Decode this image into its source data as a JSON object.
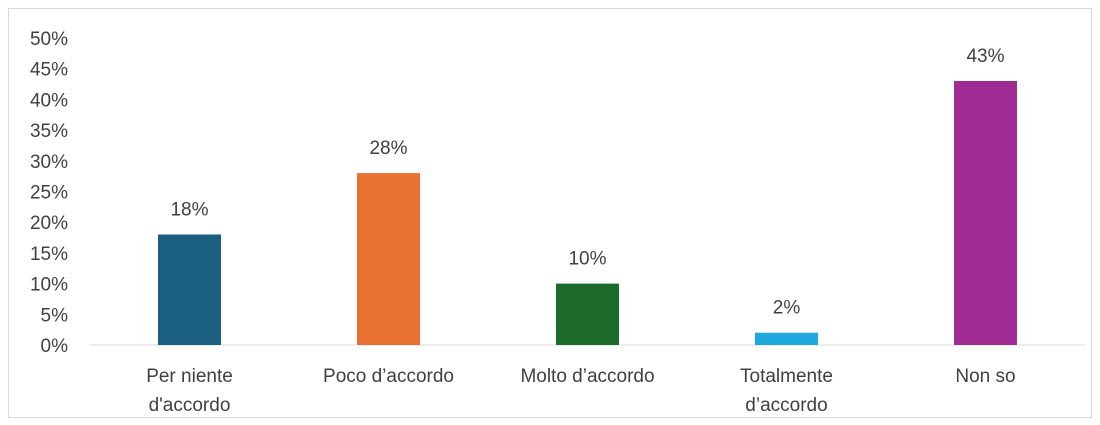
{
  "chart_data": {
    "type": "bar",
    "categories": [
      [
        "Per niente",
        "d'accordo"
      ],
      [
        "Poco d’accordo"
      ],
      [
        "Molto d’accordo"
      ],
      [
        "Totalmente",
        "d’accordo"
      ],
      [
        "Non so"
      ]
    ],
    "values": [
      18,
      28,
      10,
      2,
      43
    ],
    "data_labels": [
      "18%",
      "28%",
      "10%",
      "2%",
      "43%"
    ],
    "colors": [
      "#1a5f80",
      "#e97132",
      "#1c6b2a",
      "#1ea8dc",
      "#a02b93"
    ],
    "y_ticks": [
      "0%",
      "5%",
      "10%",
      "15%",
      "20%",
      "25%",
      "30%",
      "35%",
      "40%",
      "45%",
      "50%"
    ],
    "ylim": [
      0,
      50
    ],
    "grid": false,
    "legend": "none",
    "title": "",
    "xlabel": "",
    "ylabel": ""
  }
}
